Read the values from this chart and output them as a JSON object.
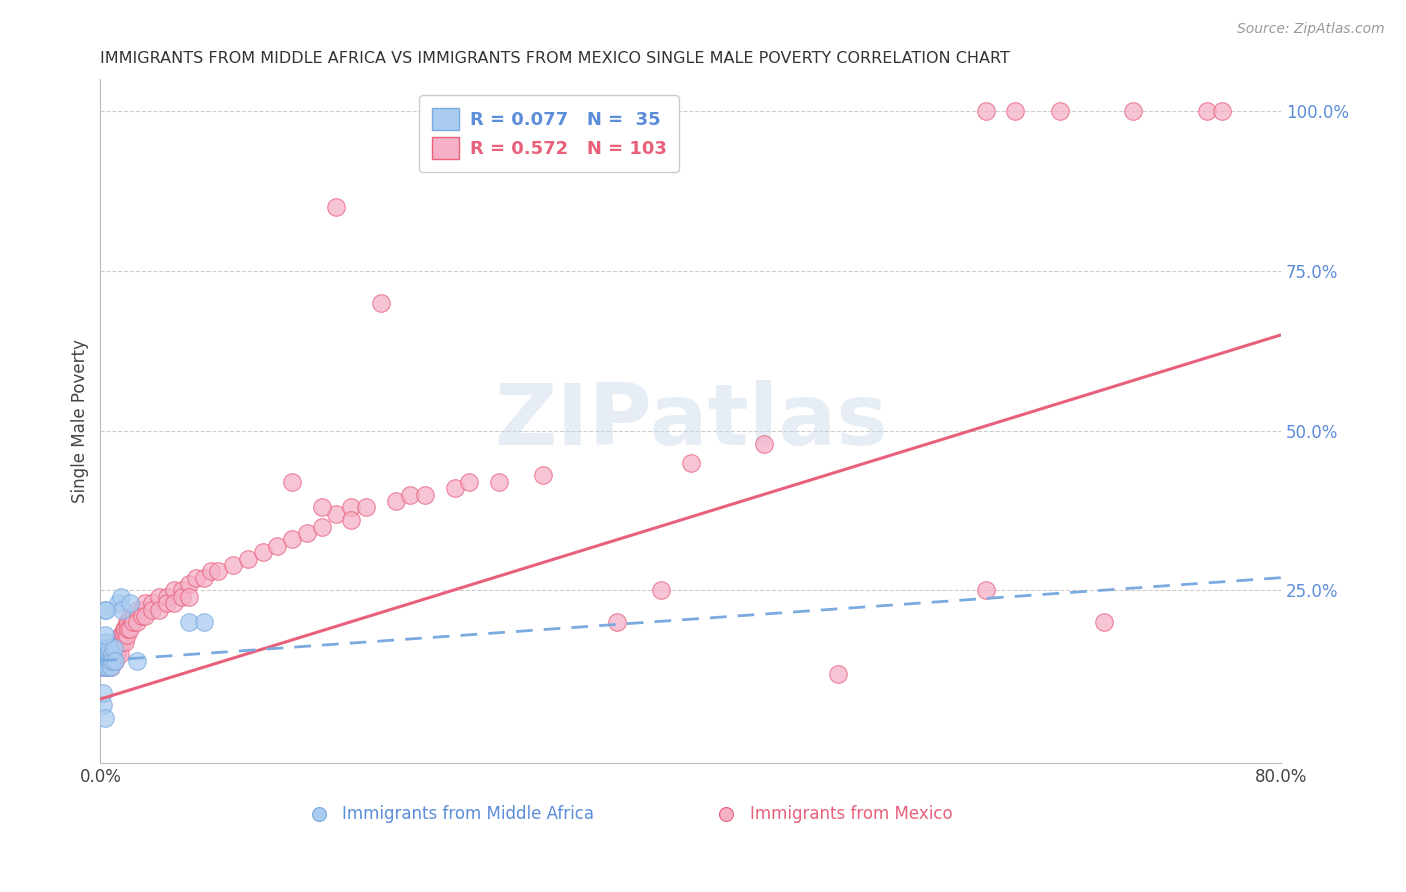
{
  "title": "IMMIGRANTS FROM MIDDLE AFRICA VS IMMIGRANTS FROM MEXICO SINGLE MALE POVERTY CORRELATION CHART",
  "source": "Source: ZipAtlas.com",
  "ylabel": "Single Male Poverty",
  "blue_color": "#aaccf0",
  "pink_color": "#f5b0c8",
  "trend_blue_color": "#7aaae0",
  "trend_pink_color": "#e8607a",
  "watermark": "ZIPatlas",
  "xlim": [
    0.0,
    0.8
  ],
  "ylim": [
    -0.02,
    1.05
  ],
  "legend_label_blue": "Immigrants from Middle Africa",
  "legend_label_pink": "Immigrants from Mexico",
  "blue_scatter": [
    [
      0.001,
      0.14
    ],
    [
      0.001,
      0.13
    ],
    [
      0.002,
      0.15
    ],
    [
      0.002,
      0.16
    ],
    [
      0.003,
      0.14
    ],
    [
      0.003,
      0.13
    ],
    [
      0.003,
      0.15
    ],
    [
      0.004,
      0.16
    ],
    [
      0.004,
      0.14
    ],
    [
      0.004,
      0.17
    ],
    [
      0.005,
      0.15
    ],
    [
      0.005,
      0.14
    ],
    [
      0.005,
      0.13
    ],
    [
      0.006,
      0.15
    ],
    [
      0.006,
      0.14
    ],
    [
      0.006,
      0.16
    ],
    [
      0.007,
      0.14
    ],
    [
      0.007,
      0.13
    ],
    [
      0.008,
      0.15
    ],
    [
      0.008,
      0.14
    ],
    [
      0.009,
      0.16
    ],
    [
      0.01,
      0.14
    ],
    [
      0.012,
      0.23
    ],
    [
      0.014,
      0.24
    ],
    [
      0.015,
      0.22
    ],
    [
      0.02,
      0.23
    ],
    [
      0.025,
      0.14
    ],
    [
      0.003,
      0.22
    ],
    [
      0.004,
      0.22
    ],
    [
      0.002,
      0.07
    ],
    [
      0.003,
      0.05
    ],
    [
      0.002,
      0.09
    ],
    [
      0.06,
      0.2
    ],
    [
      0.07,
      0.2
    ],
    [
      0.003,
      0.18
    ]
  ],
  "pink_scatter": [
    [
      0.001,
      0.14
    ],
    [
      0.001,
      0.15
    ],
    [
      0.002,
      0.14
    ],
    [
      0.002,
      0.13
    ],
    [
      0.002,
      0.15
    ],
    [
      0.003,
      0.14
    ],
    [
      0.003,
      0.13
    ],
    [
      0.003,
      0.16
    ],
    [
      0.003,
      0.15
    ],
    [
      0.004,
      0.14
    ],
    [
      0.004,
      0.15
    ],
    [
      0.004,
      0.13
    ],
    [
      0.004,
      0.16
    ],
    [
      0.005,
      0.14
    ],
    [
      0.005,
      0.15
    ],
    [
      0.005,
      0.13
    ],
    [
      0.006,
      0.16
    ],
    [
      0.006,
      0.14
    ],
    [
      0.006,
      0.15
    ],
    [
      0.007,
      0.14
    ],
    [
      0.007,
      0.16
    ],
    [
      0.007,
      0.13
    ],
    [
      0.008,
      0.15
    ],
    [
      0.008,
      0.14
    ],
    [
      0.008,
      0.16
    ],
    [
      0.009,
      0.14
    ],
    [
      0.009,
      0.15
    ],
    [
      0.01,
      0.16
    ],
    [
      0.01,
      0.15
    ],
    [
      0.01,
      0.14
    ],
    [
      0.011,
      0.16
    ],
    [
      0.011,
      0.15
    ],
    [
      0.012,
      0.17
    ],
    [
      0.012,
      0.16
    ],
    [
      0.013,
      0.17
    ],
    [
      0.013,
      0.15
    ],
    [
      0.014,
      0.18
    ],
    [
      0.014,
      0.17
    ],
    [
      0.015,
      0.18
    ],
    [
      0.015,
      0.17
    ],
    [
      0.016,
      0.19
    ],
    [
      0.016,
      0.18
    ],
    [
      0.017,
      0.19
    ],
    [
      0.017,
      0.17
    ],
    [
      0.018,
      0.2
    ],
    [
      0.018,
      0.18
    ],
    [
      0.019,
      0.2
    ],
    [
      0.019,
      0.19
    ],
    [
      0.02,
      0.21
    ],
    [
      0.02,
      0.19
    ],
    [
      0.022,
      0.21
    ],
    [
      0.022,
      0.2
    ],
    [
      0.025,
      0.22
    ],
    [
      0.025,
      0.2
    ],
    [
      0.028,
      0.22
    ],
    [
      0.028,
      0.21
    ],
    [
      0.03,
      0.23
    ],
    [
      0.03,
      0.21
    ],
    [
      0.035,
      0.23
    ],
    [
      0.035,
      0.22
    ],
    [
      0.04,
      0.24
    ],
    [
      0.04,
      0.22
    ],
    [
      0.045,
      0.24
    ],
    [
      0.045,
      0.23
    ],
    [
      0.05,
      0.25
    ],
    [
      0.05,
      0.23
    ],
    [
      0.055,
      0.25
    ],
    [
      0.055,
      0.24
    ],
    [
      0.06,
      0.26
    ],
    [
      0.06,
      0.24
    ],
    [
      0.065,
      0.27
    ],
    [
      0.07,
      0.27
    ],
    [
      0.075,
      0.28
    ],
    [
      0.08,
      0.28
    ],
    [
      0.09,
      0.29
    ],
    [
      0.1,
      0.3
    ],
    [
      0.11,
      0.31
    ],
    [
      0.12,
      0.32
    ],
    [
      0.13,
      0.33
    ],
    [
      0.14,
      0.34
    ],
    [
      0.15,
      0.35
    ],
    [
      0.16,
      0.37
    ],
    [
      0.17,
      0.38
    ],
    [
      0.17,
      0.36
    ],
    [
      0.18,
      0.38
    ],
    [
      0.2,
      0.39
    ],
    [
      0.21,
      0.4
    ],
    [
      0.22,
      0.4
    ],
    [
      0.24,
      0.41
    ],
    [
      0.25,
      0.42
    ],
    [
      0.27,
      0.42
    ],
    [
      0.3,
      0.43
    ],
    [
      0.35,
      0.2
    ],
    [
      0.38,
      0.25
    ],
    [
      0.4,
      0.45
    ],
    [
      0.45,
      0.48
    ],
    [
      0.5,
      0.12
    ],
    [
      0.13,
      0.42
    ],
    [
      0.15,
      0.38
    ],
    [
      0.6,
      1.0
    ],
    [
      0.62,
      1.0
    ],
    [
      0.65,
      1.0
    ],
    [
      0.7,
      1.0
    ],
    [
      0.75,
      1.0
    ],
    [
      0.76,
      1.0
    ],
    [
      0.16,
      0.85
    ],
    [
      0.19,
      0.7
    ],
    [
      0.6,
      0.25
    ],
    [
      0.68,
      0.2
    ]
  ],
  "pink_trend": [
    0.0,
    0.08,
    0.8,
    0.65
  ],
  "blue_trend": [
    0.0,
    0.14,
    0.8,
    0.27
  ]
}
